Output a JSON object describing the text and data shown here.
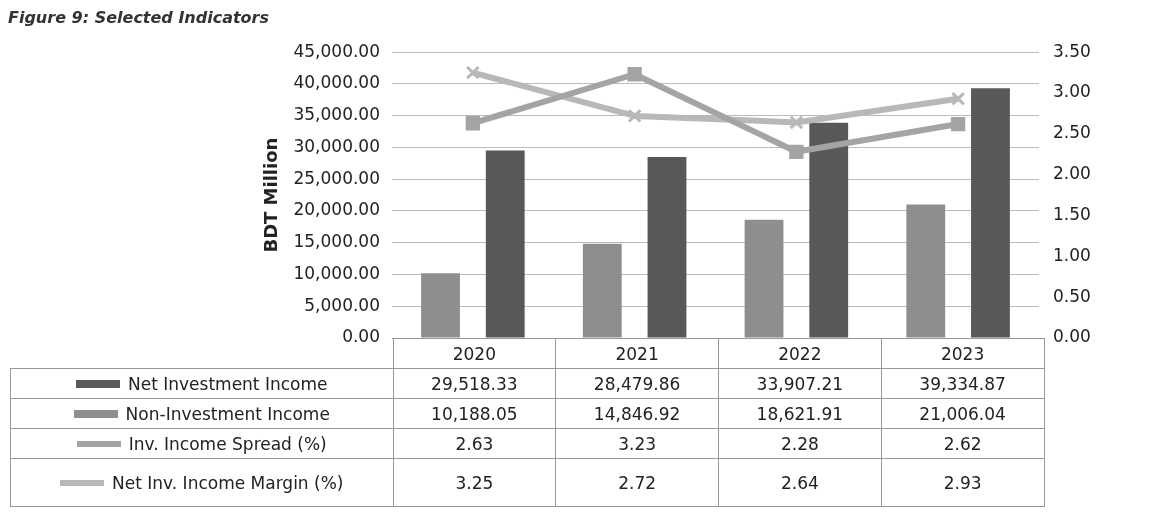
{
  "chart_data": {
    "type": "bar",
    "title": "Figure 9: Selected Indicators",
    "ylabel": "BDT Million",
    "categories": [
      "2020",
      "2021",
      "2022",
      "2023"
    ],
    "series": [
      {
        "name": "Net Investment Income",
        "color": "#585858",
        "values": [
          29518.33,
          28479.86,
          33907.21,
          39334.87
        ],
        "value_labels": [
          "29,518.33",
          "28,479.86",
          "33,907.21",
          "39,334.87"
        ]
      },
      {
        "name": "Non-Investment Income",
        "color": "#8e8e8e",
        "values": [
          10188.05,
          14846.92,
          18621.91,
          21006.04
        ],
        "value_labels": [
          "10,188.05",
          "14,846.92",
          "18,621.91",
          "21,006.04"
        ]
      },
      {
        "name": "Inv. Income Spread (%)",
        "type": "line",
        "axis": "y2",
        "marker": "square",
        "color": "#a4a4a4",
        "values": [
          2.63,
          3.23,
          2.28,
          2.62
        ],
        "value_labels": [
          "2.63",
          "3.23",
          "2.28",
          "2.62"
        ]
      },
      {
        "name": "Net Inv. Income Margin (%)",
        "type": "line",
        "axis": "y2",
        "marker": "cross",
        "color": "#b8b8b8",
        "values": [
          3.25,
          2.72,
          2.64,
          2.93
        ],
        "value_labels": [
          "3.25",
          "2.72",
          "2.64",
          "2.93"
        ]
      }
    ],
    "ylim": [
      0,
      45000
    ],
    "yticks": [
      {
        "value": 0,
        "label": "0.00"
      },
      {
        "value": 5000,
        "label": "5,000.00"
      },
      {
        "value": 10000,
        "label": "10,000.00"
      },
      {
        "value": 15000,
        "label": "15,000.00"
      },
      {
        "value": 20000,
        "label": "20,000.00"
      },
      {
        "value": 25000,
        "label": "25,000.00"
      },
      {
        "value": 30000,
        "label": "30,000.00"
      },
      {
        "value": 35000,
        "label": "35,000.00"
      },
      {
        "value": 40000,
        "label": "40,000.00"
      },
      {
        "value": 45000,
        "label": "45,000.00"
      }
    ],
    "y2lim": [
      0,
      3.5
    ],
    "y2ticks": [
      {
        "value": 0,
        "label": "0.00"
      },
      {
        "value": 0.5,
        "label": "0.50"
      },
      {
        "value": 1,
        "label": "1.00"
      },
      {
        "value": 1.5,
        "label": "1.50"
      },
      {
        "value": 2,
        "label": "2.00"
      },
      {
        "value": 2.5,
        "label": "2.50"
      },
      {
        "value": 3,
        "label": "3.00"
      },
      {
        "value": 3.5,
        "label": "3.50"
      }
    ],
    "grid": "y",
    "legend": "bottom",
    "line_style": "solid"
  }
}
